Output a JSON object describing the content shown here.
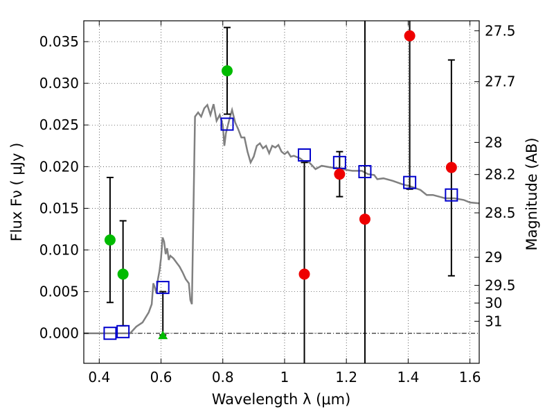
{
  "chart_data": {
    "type": "scatter",
    "xlabel": "Wavelength  λ (μm)",
    "ylabel": "Flux  Fν  ( μJy )",
    "ylabel_right": "Magnitude (AB)",
    "xlim": [
      0.35,
      1.63
    ],
    "ylim": [
      -0.0036,
      0.0375
    ],
    "grid": true,
    "x_ticks": [
      {
        "value": 0.4,
        "label": "0.4"
      },
      {
        "value": 0.6,
        "label": "0.6"
      },
      {
        "value": 0.8,
        "label": "0.8"
      },
      {
        "value": 1.0,
        "label": "1"
      },
      {
        "value": 1.2,
        "label": "1.2"
      },
      {
        "value": 1.4,
        "label": "1.4"
      },
      {
        "value": 1.6,
        "label": "1.6"
      }
    ],
    "y_ticks": [
      {
        "value": 0.0,
        "label": "0.000"
      },
      {
        "value": 0.005,
        "label": "0.005"
      },
      {
        "value": 0.01,
        "label": "0.010"
      },
      {
        "value": 0.015,
        "label": "0.015"
      },
      {
        "value": 0.02,
        "label": "0.020"
      },
      {
        "value": 0.025,
        "label": "0.025"
      },
      {
        "value": 0.03,
        "label": "0.030"
      },
      {
        "value": 0.035,
        "label": "0.035"
      }
    ],
    "mag_ticks": [
      {
        "mag": 27.5,
        "label": "27.5"
      },
      {
        "mag": 27.7,
        "label": "27.7"
      },
      {
        "mag": 28.0,
        "label": "28"
      },
      {
        "mag": 28.2,
        "label": "28.2"
      },
      {
        "mag": 28.5,
        "label": "28.5"
      },
      {
        "mag": 29.0,
        "label": "29"
      },
      {
        "mag": 29.5,
        "label": "29.5"
      },
      {
        "mag": 30.0,
        "label": "30"
      },
      {
        "mag": 31.0,
        "label": "31"
      }
    ],
    "colors": {
      "sed": "#808080",
      "model": "#0000cc",
      "green": "#00bb00",
      "red": "#ee0000",
      "errorbar": "#000000"
    },
    "sed_curve": [
      [
        0.35,
        0.0
      ],
      [
        0.45,
        0.0
      ],
      [
        0.5,
        0.0
      ],
      [
        0.52,
        0.0008
      ],
      [
        0.54,
        0.0013
      ],
      [
        0.56,
        0.0025
      ],
      [
        0.57,
        0.0035
      ],
      [
        0.575,
        0.006
      ],
      [
        0.58,
        0.0055
      ],
      [
        0.585,
        0.0048
      ],
      [
        0.59,
        0.0065
      ],
      [
        0.595,
        0.0075
      ],
      [
        0.6,
        0.009
      ],
      [
        0.605,
        0.0115
      ],
      [
        0.61,
        0.011
      ],
      [
        0.615,
        0.0095
      ],
      [
        0.62,
        0.0102
      ],
      [
        0.625,
        0.0088
      ],
      [
        0.63,
        0.0093
      ],
      [
        0.64,
        0.009
      ],
      [
        0.65,
        0.0085
      ],
      [
        0.66,
        0.008
      ],
      [
        0.67,
        0.0073
      ],
      [
        0.68,
        0.0065
      ],
      [
        0.69,
        0.006
      ],
      [
        0.695,
        0.004
      ],
      [
        0.7,
        0.0035
      ],
      [
        0.705,
        0.015
      ],
      [
        0.71,
        0.026
      ],
      [
        0.72,
        0.0265
      ],
      [
        0.73,
        0.026
      ],
      [
        0.74,
        0.027
      ],
      [
        0.75,
        0.0274
      ],
      [
        0.76,
        0.0262
      ],
      [
        0.77,
        0.0275
      ],
      [
        0.78,
        0.0255
      ],
      [
        0.79,
        0.0262
      ],
      [
        0.8,
        0.025
      ],
      [
        0.805,
        0.0225
      ],
      [
        0.81,
        0.024
      ],
      [
        0.82,
        0.0255
      ],
      [
        0.83,
        0.0268
      ],
      [
        0.84,
        0.0253
      ],
      [
        0.85,
        0.0245
      ],
      [
        0.86,
        0.0235
      ],
      [
        0.87,
        0.0235
      ],
      [
        0.88,
        0.0218
      ],
      [
        0.89,
        0.0205
      ],
      [
        0.9,
        0.0212
      ],
      [
        0.91,
        0.0225
      ],
      [
        0.92,
        0.0228
      ],
      [
        0.93,
        0.0222
      ],
      [
        0.94,
        0.0225
      ],
      [
        0.95,
        0.0216
      ],
      [
        0.96,
        0.0225
      ],
      [
        0.97,
        0.0223
      ],
      [
        0.98,
        0.0226
      ],
      [
        0.99,
        0.0218
      ],
      [
        1.0,
        0.0215
      ],
      [
        1.01,
        0.0218
      ],
      [
        1.02,
        0.0212
      ],
      [
        1.03,
        0.0213
      ],
      [
        1.05,
        0.021
      ],
      [
        1.06,
        0.0207
      ],
      [
        1.08,
        0.0205
      ],
      [
        1.1,
        0.0197
      ],
      [
        1.12,
        0.0201
      ],
      [
        1.15,
        0.0199
      ],
      [
        1.18,
        0.0198
      ],
      [
        1.2,
        0.0196
      ],
      [
        1.22,
        0.0195
      ],
      [
        1.25,
        0.0195
      ],
      [
        1.27,
        0.0191
      ],
      [
        1.29,
        0.019
      ],
      [
        1.3,
        0.0185
      ],
      [
        1.32,
        0.0186
      ],
      [
        1.35,
        0.0183
      ],
      [
        1.38,
        0.0179
      ],
      [
        1.41,
        0.0176
      ],
      [
        1.44,
        0.0172
      ],
      [
        1.46,
        0.0166
      ],
      [
        1.48,
        0.0166
      ],
      [
        1.5,
        0.0164
      ],
      [
        1.52,
        0.0162
      ],
      [
        1.55,
        0.0162
      ],
      [
        1.58,
        0.016
      ],
      [
        1.6,
        0.0157
      ],
      [
        1.63,
        0.0156
      ]
    ],
    "model_points": [
      {
        "x": 0.435,
        "y": 0.0
      },
      {
        "x": 0.477,
        "y": 0.0002
      },
      {
        "x": 0.606,
        "y": 0.0055
      },
      {
        "x": 0.814,
        "y": 0.0251
      },
      {
        "x": 1.064,
        "y": 0.0214
      },
      {
        "x": 1.178,
        "y": 0.0205
      },
      {
        "x": 1.26,
        "y": 0.0194
      },
      {
        "x": 1.405,
        "y": 0.0181
      },
      {
        "x": 1.54,
        "y": 0.0166
      }
    ],
    "observed_points": [
      {
        "x": 0.435,
        "y": 0.0112,
        "err_low": 0.0037,
        "err_high": 0.0187,
        "color": "green",
        "marker": "circle"
      },
      {
        "x": 0.477,
        "y": 0.0071,
        "err_low": 0.0009,
        "err_high": 0.0135,
        "color": "green",
        "marker": "circle"
      },
      {
        "x": 0.606,
        "y": -0.0002,
        "err_low": -0.0002,
        "err_high": 0.005,
        "color": "green",
        "marker": "triangle"
      },
      {
        "x": 0.814,
        "y": 0.0315,
        "err_low": 0.0263,
        "err_high": 0.0367,
        "color": "green",
        "marker": "circle"
      },
      {
        "x": 1.064,
        "y": 0.0071,
        "err_low": -0.0036,
        "err_high": 0.0205,
        "color": "red",
        "marker": "circle"
      },
      {
        "x": 1.178,
        "y": 0.0191,
        "err_low": 0.0164,
        "err_high": 0.0218,
        "color": "red",
        "marker": "circle"
      },
      {
        "x": 1.26,
        "y": 0.0137,
        "err_low": -0.0036,
        "err_high": 0.0375,
        "color": "red",
        "marker": "circle"
      },
      {
        "x": 1.405,
        "y": 0.0357,
        "err_low": 0.0173,
        "err_high": 0.0375,
        "color": "red",
        "marker": "circle"
      },
      {
        "x": 1.54,
        "y": 0.0199,
        "err_low": 0.0069,
        "err_high": 0.0328,
        "color": "red",
        "marker": "circle"
      }
    ]
  }
}
